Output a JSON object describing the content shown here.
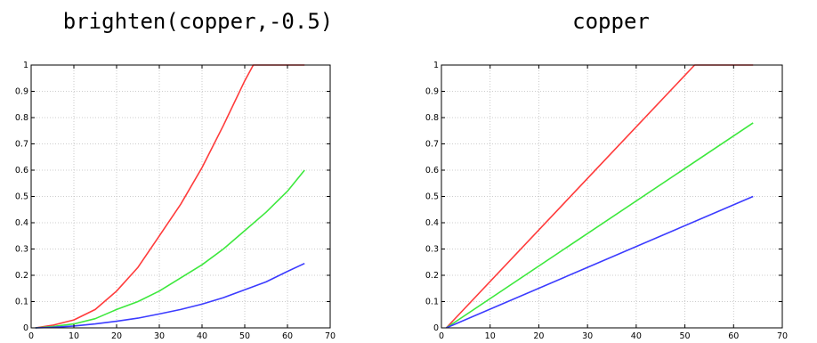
{
  "chart_data": [
    {
      "type": "line",
      "title": "brighten(copper,-0.5)",
      "xlabel": "",
      "ylabel": "",
      "xlim": [
        0,
        70
      ],
      "ylim": [
        0,
        1
      ],
      "x_ticks": [
        0,
        10,
        20,
        30,
        40,
        50,
        60,
        70
      ],
      "y_ticks": [
        0,
        0.1,
        0.2,
        0.3,
        0.4,
        0.5,
        0.6,
        0.7,
        0.8,
        0.9,
        1
      ],
      "x_tick_labels": [
        "0",
        "10",
        "20",
        "30",
        "40",
        "50",
        "60",
        "70"
      ],
      "y_tick_labels": [
        "0",
        "0.1",
        "0.2",
        "0.3",
        "0.4",
        "0.5",
        "0.6",
        "0.7",
        "0.8",
        "0.9",
        "1"
      ],
      "grid": true,
      "series": [
        {
          "color": "#ff3b3b",
          "x": [
            1,
            5,
            10,
            15,
            20,
            25,
            30,
            35,
            40,
            45,
            50,
            52,
            55,
            60,
            64
          ],
          "y": [
            0,
            0.01,
            0.03,
            0.07,
            0.14,
            0.23,
            0.35,
            0.47,
            0.61,
            0.77,
            0.94,
            1,
            1,
            1,
            1
          ]
        },
        {
          "color": "#3de83d",
          "x": [
            1,
            5,
            10,
            15,
            20,
            25,
            30,
            35,
            40,
            45,
            50,
            55,
            60,
            64
          ],
          "y": [
            0,
            0.005,
            0.015,
            0.035,
            0.07,
            0.1,
            0.14,
            0.19,
            0.24,
            0.3,
            0.37,
            0.44,
            0.52,
            0.6
          ]
        },
        {
          "color": "#3b3bff",
          "x": [
            1,
            5,
            10,
            15,
            20,
            25,
            30,
            35,
            40,
            45,
            50,
            55,
            60,
            64
          ],
          "y": [
            0,
            0.002,
            0.007,
            0.015,
            0.025,
            0.037,
            0.053,
            0.07,
            0.09,
            0.115,
            0.145,
            0.175,
            0.215,
            0.245
          ]
        }
      ]
    },
    {
      "type": "line",
      "title": "copper",
      "xlabel": "",
      "ylabel": "",
      "xlim": [
        0,
        70
      ],
      "ylim": [
        0,
        1
      ],
      "x_ticks": [
        0,
        10,
        20,
        30,
        40,
        50,
        60,
        70
      ],
      "y_ticks": [
        0,
        0.1,
        0.2,
        0.3,
        0.4,
        0.5,
        0.6,
        0.7,
        0.8,
        0.9,
        1
      ],
      "x_tick_labels": [
        "0",
        "10",
        "20",
        "30",
        "40",
        "50",
        "60",
        "70"
      ],
      "y_tick_labels": [
        "0",
        "0.1",
        "0.2",
        "0.3",
        "0.4",
        "0.5",
        "0.6",
        "0.7",
        "0.8",
        "0.9",
        "1"
      ],
      "grid": true,
      "series": [
        {
          "color": "#ff3b3b",
          "x": [
            1,
            52,
            64
          ],
          "y": [
            0,
            1,
            1
          ]
        },
        {
          "color": "#3de83d",
          "x": [
            1,
            64
          ],
          "y": [
            0,
            0.78
          ]
        },
        {
          "color": "#3b3bff",
          "x": [
            1,
            64
          ],
          "y": [
            0,
            0.5
          ]
        }
      ]
    }
  ]
}
